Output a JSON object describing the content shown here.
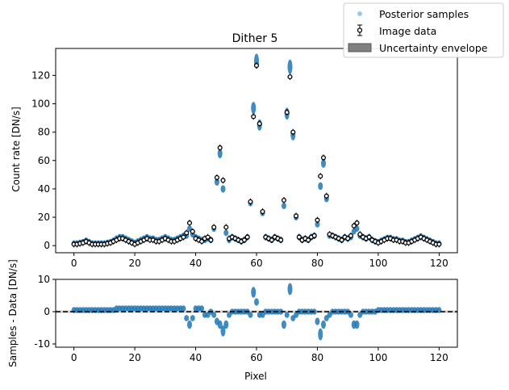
{
  "chart_data": [
    {
      "type": "scatter",
      "title": "Dither 5",
      "xlabel": "",
      "ylabel": "Count rate [DN/s]",
      "xlim": [
        -6,
        126
      ],
      "ylim": [
        -5,
        139
      ],
      "xticks": [
        0,
        20,
        40,
        60,
        80,
        100,
        120
      ],
      "yticks": [
        0,
        20,
        40,
        60,
        80,
        100,
        120
      ],
      "grid": false,
      "legend": {
        "placement": "top-right",
        "entries": [
          {
            "label": "Posterior samples",
            "color": "#9ecae1"
          },
          {
            "label": "Image data",
            "color": "#000000"
          },
          {
            "label": "Uncertainty envelope",
            "color": "#808080"
          }
        ]
      },
      "series": [
        {
          "name": "Image data",
          "color": "#000000",
          "x": [
            0,
            1,
            2,
            3,
            4,
            5,
            6,
            7,
            8,
            9,
            10,
            11,
            12,
            13,
            14,
            15,
            16,
            17,
            18,
            19,
            20,
            21,
            22,
            23,
            24,
            25,
            26,
            27,
            28,
            29,
            30,
            31,
            32,
            33,
            34,
            35,
            36,
            37,
            38,
            39,
            40,
            41,
            42,
            43,
            44,
            45,
            46,
            47,
            48,
            49,
            50,
            51,
            52,
            53,
            54,
            55,
            56,
            57,
            58,
            59,
            60,
            61,
            62,
            63,
            64,
            65,
            66,
            67,
            68,
            69,
            70,
            71,
            72,
            73,
            74,
            75,
            76,
            77,
            78,
            79,
            80,
            81,
            82,
            83,
            84,
            85,
            86,
            87,
            88,
            89,
            90,
            91,
            92,
            93,
            94,
            95,
            96,
            97,
            98,
            99,
            100,
            101,
            102,
            103,
            104,
            105,
            106,
            107,
            108,
            109,
            110,
            111,
            112,
            113,
            114,
            115,
            116,
            117,
            118,
            119,
            120
          ],
          "y": [
            1,
            1,
            1.5,
            2,
            3,
            2,
            1,
            1,
            1,
            1,
            1,
            1.5,
            2,
            3,
            4,
            5,
            5,
            4,
            3,
            2,
            1,
            2,
            3,
            4,
            5,
            4,
            4,
            3,
            3,
            4,
            5,
            4,
            3,
            3,
            4,
            5,
            6,
            9,
            16,
            10,
            5,
            4,
            3,
            5,
            6,
            4,
            13,
            48,
            69,
            46,
            13,
            5,
            6,
            5,
            4,
            3,
            4,
            6,
            31,
            91,
            127,
            86,
            24,
            6,
            5,
            4,
            6,
            5,
            4,
            32,
            94,
            119,
            80,
            21,
            6,
            4,
            5,
            4,
            6,
            7,
            18,
            49,
            62,
            35,
            8,
            7,
            6,
            5,
            4,
            6,
            5,
            7,
            14,
            16,
            8,
            6,
            5,
            6,
            4,
            3,
            2,
            3,
            4,
            5,
            5,
            4,
            4,
            3,
            3,
            2,
            2,
            3,
            4,
            5,
            6,
            5,
            4,
            3,
            2,
            1,
            1
          ]
        },
        {
          "name": "Posterior samples",
          "color": "#1f77b4",
          "x": [
            0,
            1,
            2,
            3,
            4,
            5,
            6,
            7,
            8,
            9,
            10,
            11,
            12,
            13,
            14,
            15,
            16,
            17,
            18,
            19,
            20,
            21,
            22,
            23,
            24,
            25,
            26,
            27,
            28,
            29,
            30,
            31,
            32,
            33,
            34,
            35,
            36,
            37,
            38,
            39,
            40,
            41,
            42,
            43,
            44,
            45,
            46,
            47,
            48,
            49,
            50,
            51,
            52,
            53,
            54,
            55,
            56,
            57,
            58,
            59,
            60,
            61,
            62,
            63,
            64,
            65,
            66,
            67,
            68,
            69,
            70,
            71,
            72,
            73,
            74,
            75,
            76,
            77,
            78,
            79,
            80,
            81,
            82,
            83,
            84,
            85,
            86,
            87,
            88,
            89,
            90,
            91,
            92,
            93,
            94,
            95,
            96,
            97,
            98,
            99,
            100,
            101,
            102,
            103,
            104,
            105,
            106,
            107,
            108,
            109,
            110,
            111,
            112,
            113,
            114,
            115,
            116,
            117,
            118,
            119,
            120
          ],
          "y": [
            1.5,
            1.5,
            2,
            2.5,
            3.5,
            2.5,
            1.5,
            1.5,
            1.5,
            1.5,
            1.5,
            2,
            2.5,
            3.5,
            5,
            6,
            6,
            5,
            4,
            3,
            2,
            3,
            4,
            5,
            6,
            5,
            5,
            4,
            4,
            5,
            6,
            5,
            4,
            4,
            5,
            6,
            7,
            7,
            12,
            8,
            6,
            5,
            4,
            4,
            5,
            4,
            12,
            45,
            65,
            40,
            9,
            4,
            6,
            5,
            4,
            3,
            4,
            6,
            30,
            97,
            130,
            85,
            23,
            6,
            5,
            4,
            6,
            5,
            4,
            28,
            93,
            126,
            78,
            20,
            6,
            4,
            5,
            4,
            6,
            7,
            15,
            42,
            58,
            33,
            7,
            7,
            6,
            5,
            4,
            6,
            5,
            6,
            10,
            12,
            7,
            6,
            5,
            6,
            4,
            3,
            2.5,
            3.5,
            4.5,
            5.5,
            5.5,
            4.5,
            4.5,
            3.5,
            3.5,
            2.5,
            2.5,
            3.5,
            4.5,
            5.5,
            6.5,
            5.5,
            4.5,
            3.5,
            2.5,
            1.5,
            1.5
          ]
        }
      ]
    },
    {
      "type": "scatter",
      "title": "",
      "xlabel": "Pixel",
      "ylabel": "Samples - Data [DN/s]",
      "xlim": [
        -6,
        126
      ],
      "ylim": [
        -11,
        10
      ],
      "xticks": [
        0,
        20,
        40,
        60,
        80,
        100,
        120
      ],
      "yticks": [
        -10,
        0,
        10
      ],
      "grid": false,
      "reference_line": {
        "y": 0,
        "style": "dashed",
        "color": "#000000"
      },
      "series": [
        {
          "name": "",
          "color": "#1f77b4",
          "x": [
            0,
            1,
            2,
            3,
            4,
            5,
            6,
            7,
            8,
            9,
            10,
            11,
            12,
            13,
            14,
            15,
            16,
            17,
            18,
            19,
            20,
            21,
            22,
            23,
            24,
            25,
            26,
            27,
            28,
            29,
            30,
            31,
            32,
            33,
            34,
            35,
            36,
            37,
            38,
            39,
            40,
            41,
            42,
            43,
            44,
            45,
            46,
            47,
            48,
            49,
            50,
            51,
            52,
            53,
            54,
            55,
            56,
            57,
            58,
            59,
            60,
            61,
            62,
            63,
            64,
            65,
            66,
            67,
            68,
            69,
            70,
            71,
            72,
            73,
            74,
            75,
            76,
            77,
            78,
            79,
            80,
            81,
            82,
            83,
            84,
            85,
            86,
            87,
            88,
            89,
            90,
            91,
            92,
            93,
            94,
            95,
            96,
            97,
            98,
            99,
            100,
            101,
            102,
            103,
            104,
            105,
            106,
            107,
            108,
            109,
            110,
            111,
            112,
            113,
            114,
            115,
            116,
            117,
            118,
            119,
            120
          ],
          "y": [
            0.5,
            0.5,
            0.5,
            0.5,
            0.5,
            0.5,
            0.5,
            0.5,
            0.5,
            0.5,
            0.5,
            0.5,
            0.5,
            0.5,
            1,
            1,
            1,
            1,
            1,
            1,
            1,
            1,
            1,
            1,
            1,
            1,
            1,
            1,
            1,
            1,
            1,
            1,
            1,
            1,
            1,
            1,
            1,
            -2,
            -4,
            -2,
            1,
            1,
            1,
            -1,
            -1,
            0,
            -1,
            -3,
            -4,
            -6,
            -4,
            -1,
            0,
            0,
            0,
            0,
            0,
            0,
            -1,
            6,
            3,
            -1,
            -1,
            0,
            0,
            0,
            0,
            0,
            0,
            -4,
            -1,
            7,
            -2,
            -1,
            0,
            0,
            0,
            0,
            0,
            0,
            -3,
            -7,
            -4,
            -2,
            -1,
            0,
            0,
            0,
            0,
            0,
            0,
            -1,
            -4,
            -4,
            -1,
            0,
            0,
            0,
            0,
            0,
            0.5,
            0.5,
            0.5,
            0.5,
            0.5,
            0.5,
            0.5,
            0.5,
            0.5,
            0.5,
            0.5,
            0.5,
            0.5,
            0.5,
            0.5,
            0.5,
            0.5,
            0.5,
            0.5,
            0.5,
            0.5
          ]
        }
      ]
    }
  ]
}
